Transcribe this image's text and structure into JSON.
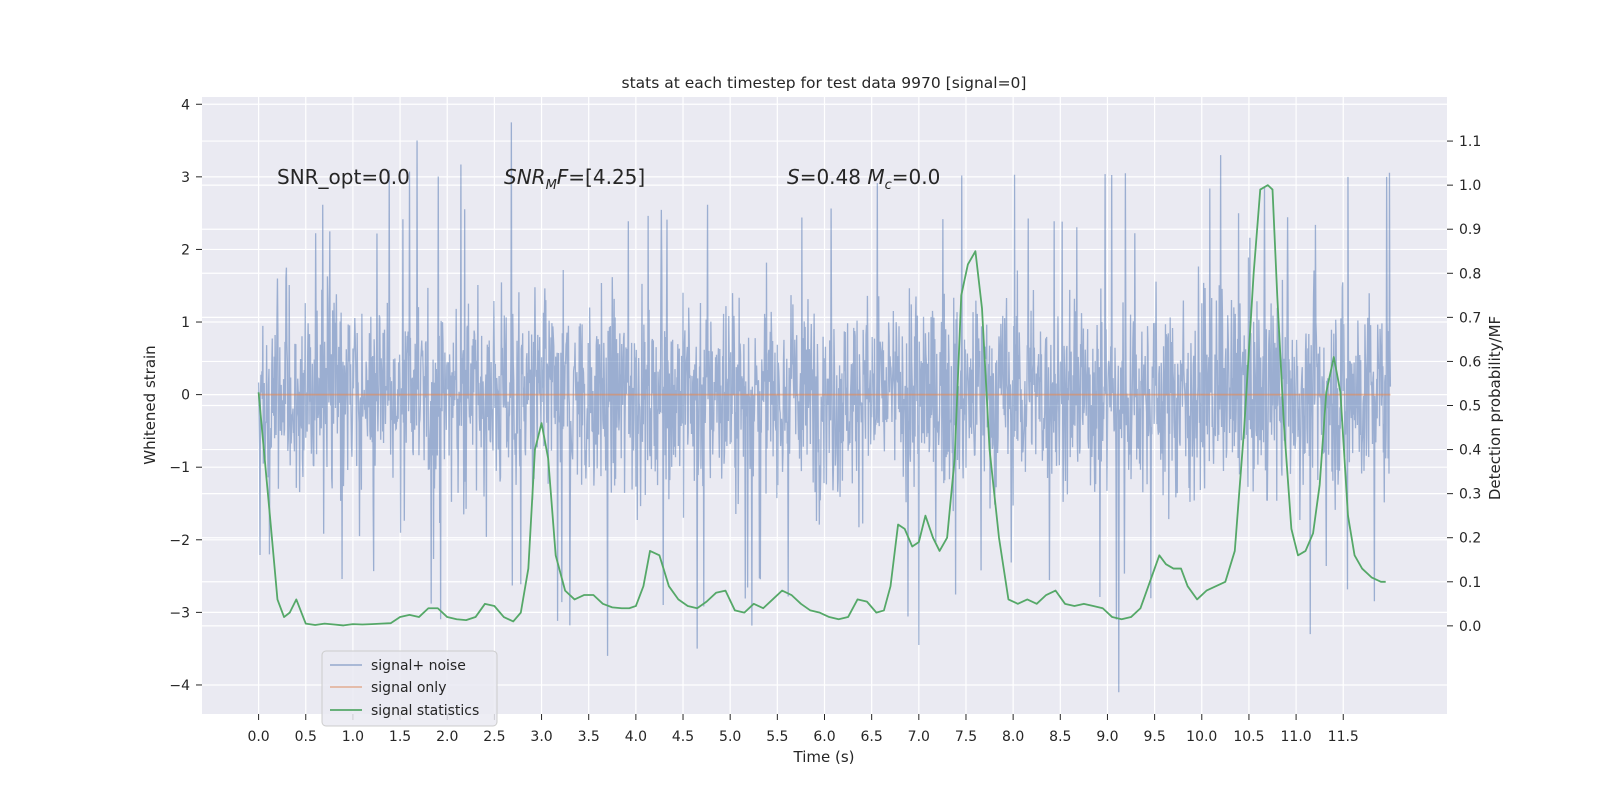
{
  "chart_data": {
    "type": "line",
    "title": "stats at each timestep for test data 9970 [signal=0]",
    "xlabel": "Time (s)",
    "ylabel": "Whitened strain",
    "y2label": "Detection probability/MF",
    "xlim": [
      -0.6,
      12.6
    ],
    "ylim": [
      -4.4,
      4.1
    ],
    "y2lim": [
      -0.2,
      1.2
    ],
    "xticks": [
      0.0,
      0.5,
      1.0,
      1.5,
      2.0,
      2.5,
      3.0,
      3.5,
      4.0,
      4.5,
      5.0,
      5.5,
      6.0,
      6.5,
      7.0,
      7.5,
      8.0,
      8.5,
      9.0,
      9.5,
      10.0,
      10.5,
      11.0,
      11.5
    ],
    "xtick_labels": [
      "0.0",
      "0.5",
      "1.0",
      "1.5",
      "2.0",
      "2.5",
      "3.0",
      "3.5",
      "4.0",
      "4.5",
      "5.0",
      "5.5",
      "6.0",
      "6.5",
      "7.0",
      "7.5",
      "8.0",
      "8.5",
      "9.0",
      "9.5",
      "10.0",
      "10.5",
      "11.0",
      "11.5"
    ],
    "yticks": [
      -4,
      -3,
      -2,
      -1,
      0,
      1,
      2,
      3,
      4
    ],
    "ytick_labels": [
      "−4",
      "−3",
      "−2",
      "−1",
      "0",
      "1",
      "2",
      "3",
      "4"
    ],
    "y2ticks": [
      0.0,
      0.1,
      0.2,
      0.3,
      0.4,
      0.5,
      0.6,
      0.7,
      0.8,
      0.9,
      1.0,
      1.1
    ],
    "y2tick_labels": [
      "0.0",
      "0.1",
      "0.2",
      "0.3",
      "0.4",
      "0.5",
      "0.6",
      "0.7",
      "0.8",
      "0.9",
      "1.0",
      "1.1"
    ],
    "grid": true,
    "legend_placement": "lower-left",
    "series": [
      {
        "name": "signal+ noise",
        "color": "#4c72b0",
        "alpha": 0.5,
        "axis": "left",
        "style": "dense-noise",
        "t_start": 0.0,
        "t_end": 12.0,
        "typical_range": [
          -1.7,
          1.7
        ],
        "extremes": [
          [
            1.68,
            3.5
          ],
          [
            2.68,
            3.75
          ],
          [
            3.7,
            -3.6
          ],
          [
            7.0,
            -3.45
          ],
          [
            9.12,
            -4.1
          ],
          [
            10.2,
            3.3
          ],
          [
            11.15,
            -3.3
          ],
          [
            11.55,
            3.0
          ],
          [
            4.65,
            -3.5
          ]
        ]
      },
      {
        "name": "signal only",
        "color": "#dd8452",
        "alpha": 0.6,
        "axis": "left",
        "x": [
          0.0,
          12.0
        ],
        "y": [
          0.0,
          0.0
        ]
      },
      {
        "name": "signal statistics",
        "color": "#55a868",
        "axis": "right",
        "x": [
          0.0,
          0.12,
          0.2,
          0.27,
          0.33,
          0.4,
          0.5,
          0.6,
          0.7,
          0.8,
          0.9,
          1.0,
          1.1,
          1.2,
          1.3,
          1.4,
          1.5,
          1.6,
          1.7,
          1.8,
          1.9,
          2.0,
          2.1,
          2.2,
          2.3,
          2.4,
          2.5,
          2.6,
          2.7,
          2.78,
          2.86,
          2.93,
          3.0,
          3.07,
          3.15,
          3.25,
          3.35,
          3.45,
          3.55,
          3.65,
          3.75,
          3.85,
          3.93,
          4.0,
          4.08,
          4.15,
          4.25,
          4.35,
          4.45,
          4.55,
          4.65,
          4.75,
          4.85,
          4.95,
          5.05,
          5.15,
          5.25,
          5.35,
          5.45,
          5.55,
          5.65,
          5.75,
          5.85,
          5.95,
          6.05,
          6.15,
          6.25,
          6.35,
          6.45,
          6.55,
          6.63,
          6.7,
          6.78,
          6.85,
          6.93,
          7.0,
          7.07,
          7.15,
          7.22,
          7.3,
          7.38,
          7.45,
          7.52,
          7.6,
          7.67,
          7.75,
          7.85,
          7.95,
          8.05,
          8.15,
          8.25,
          8.35,
          8.45,
          8.55,
          8.65,
          8.75,
          8.85,
          8.95,
          9.05,
          9.15,
          9.25,
          9.35,
          9.45,
          9.55,
          9.62,
          9.7,
          9.78,
          9.85,
          9.95,
          10.05,
          10.15,
          10.25,
          10.35,
          10.45,
          10.55,
          10.62,
          10.7,
          10.75,
          10.8,
          10.87,
          10.95,
          11.02,
          11.1,
          11.18,
          11.25,
          11.32,
          11.4,
          11.47,
          11.55,
          11.62,
          11.7,
          11.8,
          11.9,
          11.95
        ],
        "y": [
          0.53,
          0.25,
          0.06,
          0.02,
          0.03,
          0.06,
          0.005,
          0.002,
          0.005,
          0.003,
          0.001,
          0.004,
          0.003,
          0.004,
          0.005,
          0.006,
          0.02,
          0.025,
          0.02,
          0.04,
          0.04,
          0.02,
          0.015,
          0.013,
          0.02,
          0.05,
          0.045,
          0.02,
          0.01,
          0.03,
          0.13,
          0.4,
          0.46,
          0.38,
          0.16,
          0.08,
          0.06,
          0.07,
          0.07,
          0.05,
          0.042,
          0.04,
          0.04,
          0.045,
          0.09,
          0.17,
          0.16,
          0.09,
          0.06,
          0.045,
          0.04,
          0.055,
          0.075,
          0.08,
          0.035,
          0.03,
          0.05,
          0.04,
          0.06,
          0.08,
          0.07,
          0.05,
          0.035,
          0.03,
          0.02,
          0.015,
          0.02,
          0.06,
          0.055,
          0.03,
          0.035,
          0.09,
          0.23,
          0.22,
          0.18,
          0.19,
          0.25,
          0.2,
          0.17,
          0.2,
          0.38,
          0.75,
          0.82,
          0.85,
          0.72,
          0.4,
          0.2,
          0.06,
          0.05,
          0.06,
          0.05,
          0.07,
          0.08,
          0.05,
          0.045,
          0.05,
          0.045,
          0.04,
          0.02,
          0.015,
          0.02,
          0.04,
          0.1,
          0.16,
          0.14,
          0.13,
          0.13,
          0.09,
          0.06,
          0.08,
          0.09,
          0.1,
          0.17,
          0.45,
          0.8,
          0.99,
          1.0,
          0.99,
          0.75,
          0.46,
          0.22,
          0.16,
          0.17,
          0.21,
          0.32,
          0.53,
          0.61,
          0.53,
          0.25,
          0.16,
          0.13,
          0.11,
          0.1,
          0.1
        ]
      }
    ],
    "annotations": [
      {
        "name": "snr-opt",
        "x": 0.2,
        "y": 3.0,
        "text": "SNR_opt=0.0"
      },
      {
        "name": "snr-mf",
        "x": 2.6,
        "y": 3.0,
        "text": "$SNR_MF$=[4.25]"
      },
      {
        "name": "s-stat",
        "x": 5.6,
        "y": 3.0,
        "text": "$S$=0.48   $M_c$=0.0"
      }
    ]
  }
}
